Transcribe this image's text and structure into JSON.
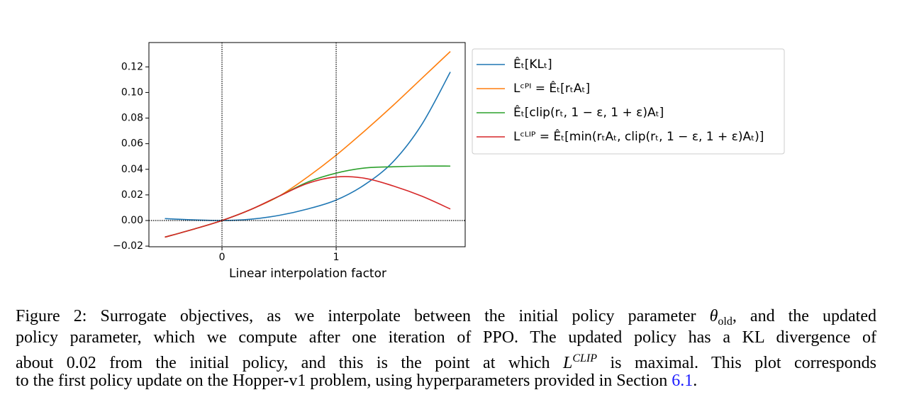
{
  "chart_data": {
    "type": "line",
    "x": [
      -0.5,
      -0.25,
      0,
      0.25,
      0.5,
      0.75,
      1,
      1.25,
      1.5,
      1.75,
      2.0
    ],
    "series": [
      {
        "name": "Êₜ[KLₜ]",
        "color": "#1f77b4",
        "values": [
          0.0015,
          0.0005,
          0,
          0.001,
          0.004,
          0.009,
          0.016,
          0.028,
          0.046,
          0.075,
          0.116
        ]
      },
      {
        "name": "Lᶜᴾᴵ = Êₜ[rₜAₜ]",
        "color": "#ff7f0e",
        "values": [
          -0.013,
          -0.0068,
          0,
          0.0085,
          0.019,
          0.034,
          0.051,
          0.07,
          0.09,
          0.111,
          0.132
        ]
      },
      {
        "name": "Êₜ[clip(rₜ, 1 − ε, 1 + ε)Aₜ]",
        "color": "#2ca02c",
        "values": [
          -0.013,
          -0.0068,
          0,
          0.0085,
          0.019,
          0.03,
          0.037,
          0.041,
          0.042,
          0.0425,
          0.0425
        ]
      },
      {
        "name": "Lᶜᴸᴵᴾ = Êₜ[min(rₜAₜ, clip(rₜ, 1 − ε, 1 + ε)Aₜ)]",
        "color": "#d62728",
        "values": [
          -0.013,
          -0.0068,
          0,
          0.0085,
          0.019,
          0.029,
          0.034,
          0.033,
          0.027,
          0.019,
          0.009
        ]
      }
    ],
    "xlabel": "Linear interpolation factor",
    "xlim": [
      -0.64,
      2.13
    ],
    "xticks": [
      0,
      1
    ],
    "ylim": [
      -0.0205,
      0.139
    ],
    "yticks": [
      {
        "value": -0.02,
        "label": "−0.02"
      },
      {
        "value": 0,
        "label": "0.00"
      },
      0.02,
      0.04,
      0.06,
      0.08,
      {
        "value": 0.1,
        "label": "0.10"
      },
      0.12
    ],
    "vlines": [
      0,
      1
    ],
    "hlines": [
      0
    ],
    "legend": "upper right outside"
  },
  "caption": {
    "lines": [
      [
        "Figure 2: Surrogate objectives, as we interpolate between the initial policy parameter ",
        "θ",
        "old",
        ", and the updated"
      ],
      [
        "policy parameter, which we compute after one iteration of PPO. The updated policy has a KL divergence of"
      ],
      [
        "about 0.02 from the initial policy, and this is the point at which ",
        "L",
        "CLIP",
        " is maximal. This plot corresponds"
      ],
      [
        "to the first policy update on the Hopper-v1 problem, using hyperparameters provided in Section ",
        "6.1",
        "."
      ]
    ]
  }
}
